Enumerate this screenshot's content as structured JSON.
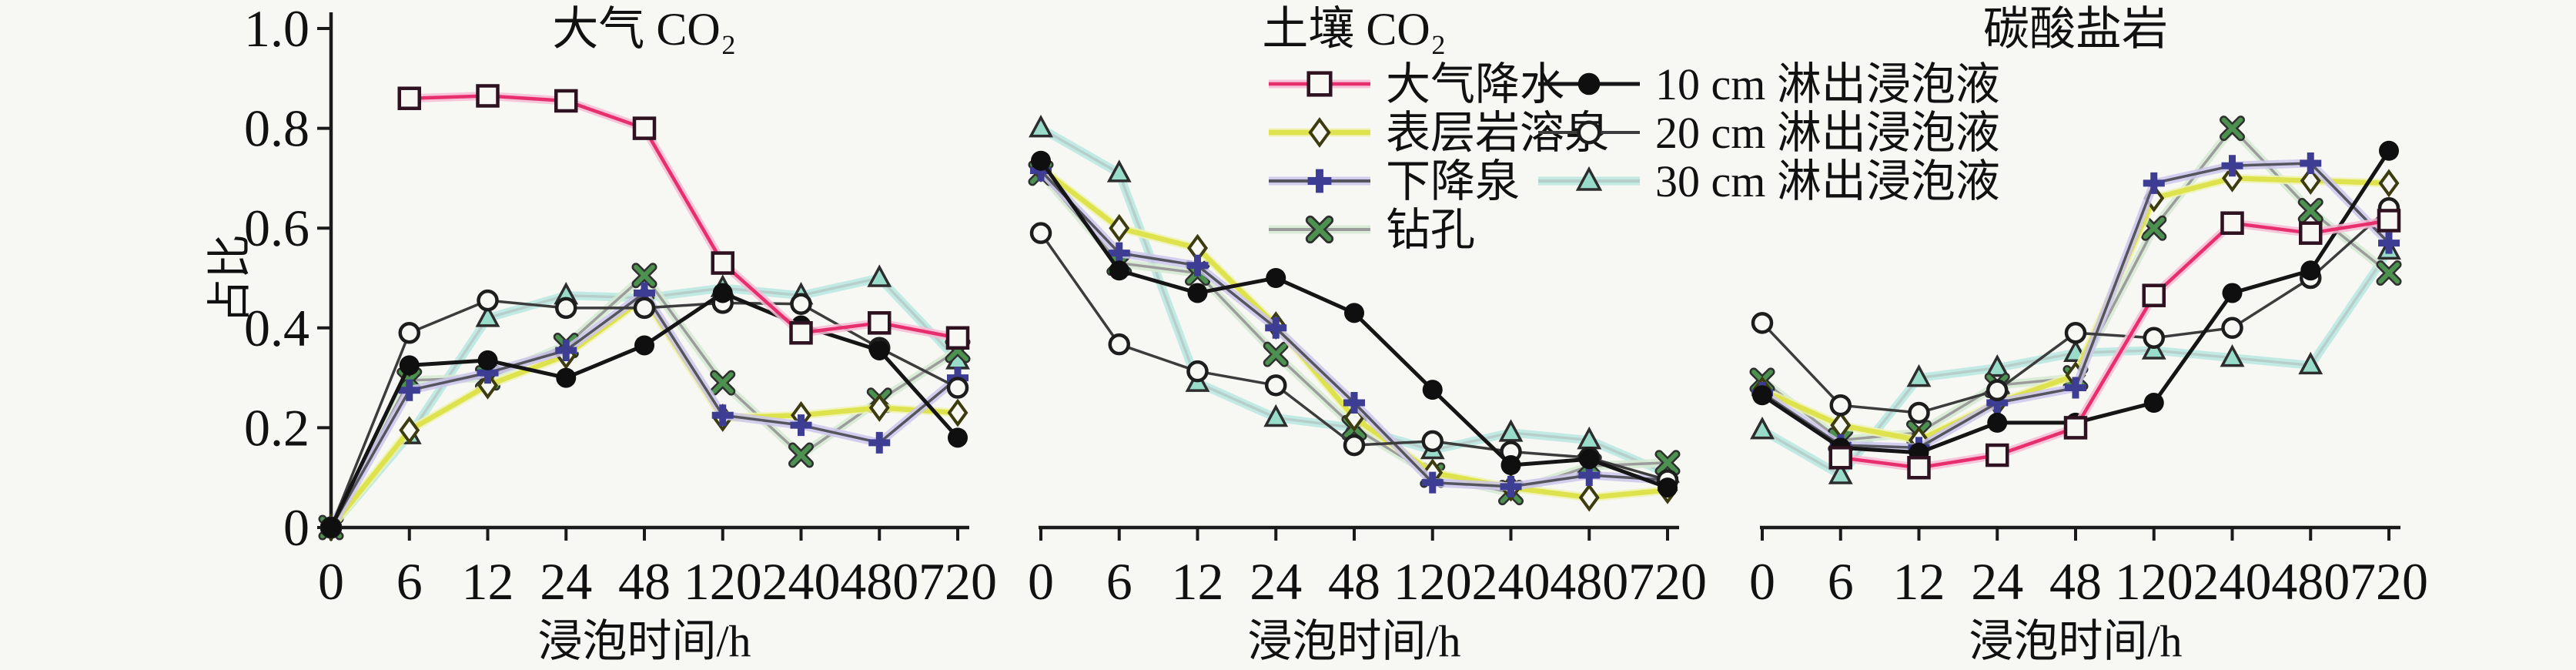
{
  "figure": {
    "background": "#f7f7f4",
    "axis_color": "#1a1a1a",
    "y_axis": {
      "label": "占比",
      "ticks": [
        0,
        0.2,
        0.4,
        0.6,
        0.8,
        1.0
      ],
      "tick_labels": [
        "0",
        "0.2",
        "0.4",
        "0.6",
        "0.8",
        "1.0"
      ],
      "range": [
        0,
        1.0
      ]
    },
    "x_axis": {
      "label": "浸泡时间/h",
      "tick_labels": [
        "0",
        "6",
        "12",
        "24",
        "48",
        "120",
        "240",
        "480",
        "720"
      ]
    }
  },
  "series_styles": {
    "precipitation": {
      "label": "大气降水",
      "marker": "square-open",
      "line_color": "#e82f6e",
      "marker_color": "#2e1220",
      "glow": "#f6bcd4"
    },
    "epikarst_spring": {
      "label": "表层岩溶泉",
      "marker": "diamond-open",
      "line_color": "#dde24d",
      "marker_color": "#3c3c10",
      "glow": "#eff3ae"
    },
    "descending_spring": {
      "label": "下降泉",
      "marker": "plus",
      "line_color": "#55555f",
      "marker_color": "#3d3d94",
      "glow": "#ccc6ec"
    },
    "borehole": {
      "label": "钻孔",
      "marker": "x",
      "line_color": "#9c9c9c",
      "marker_color": "#4c9150",
      "glow": "#d5ead2"
    },
    "leach10": {
      "label": "10 cm 淋出浸泡液",
      "marker": "circle-filled",
      "line_color": "#151515",
      "marker_color": "#0f0f0f",
      "glow": "none"
    },
    "leach20": {
      "label": "20 cm 淋出浸泡液",
      "marker": "circle-open",
      "line_color": "#3c3c3c",
      "marker_color": "#1d1d1d",
      "glow": "none"
    },
    "leach30": {
      "label": "30 cm 淋出浸泡液",
      "marker": "triangle",
      "line_color": "#b7cfca",
      "marker_color": "#2d2d2d",
      "marker_fill": "#99dcca",
      "glow": "#b9e8e0"
    }
  },
  "legend": {
    "columns": [
      [
        "precipitation",
        "epikarst_spring",
        "descending_spring",
        "borehole"
      ],
      [
        "leach10",
        "leach20",
        "leach30"
      ]
    ]
  },
  "chart_data": [
    {
      "type": "line",
      "title": "大气 CO₂",
      "xlabel": "浸泡时间/h",
      "ylabel": "占比",
      "ylim": [
        0,
        1.0
      ],
      "categories": [
        0,
        6,
        12,
        24,
        48,
        120,
        240,
        480,
        720
      ],
      "series": [
        {
          "key": "precipitation",
          "name": "大气降水",
          "values": [
            null,
            0.86,
            0.865,
            0.855,
            0.8,
            0.53,
            0.39,
            0.41,
            0.38
          ]
        },
        {
          "key": "epikarst_spring",
          "name": "表层岩溶泉",
          "values": [
            0,
            0.195,
            0.285,
            0.345,
            0.46,
            0.22,
            0.225,
            0.24,
            0.23
          ]
        },
        {
          "key": "descending_spring",
          "name": "下降泉",
          "values": [
            0,
            0.275,
            0.31,
            0.355,
            0.47,
            0.225,
            0.205,
            0.17,
            0.3
          ]
        },
        {
          "key": "borehole",
          "name": "钻孔",
          "values": [
            0,
            0.295,
            0.3,
            0.365,
            0.505,
            0.29,
            0.145,
            0.255,
            0.355
          ]
        },
        {
          "key": "leach10",
          "name": "10 cm 淋出浸泡液",
          "values": [
            0,
            0.325,
            0.335,
            0.3,
            0.365,
            0.47,
            0.405,
            0.355,
            0.18
          ]
        },
        {
          "key": "leach20",
          "name": "20 cm 淋出浸泡液",
          "values": [
            0,
            0.39,
            0.455,
            0.44,
            0.44,
            0.45,
            0.448,
            0.36,
            0.28
          ]
        },
        {
          "key": "leach30",
          "name": "30 cm 淋出浸泡液",
          "values": [
            0,
            0.185,
            0.42,
            0.465,
            0.46,
            0.48,
            0.465,
            0.5,
            0.335
          ]
        }
      ]
    },
    {
      "type": "line",
      "title": "土壤 CO₂",
      "xlabel": "浸泡时间/h",
      "ylabel": "占比",
      "ylim": [
        0,
        1.0
      ],
      "categories": [
        0,
        6,
        12,
        24,
        48,
        120,
        240,
        480,
        720
      ],
      "series": [
        {
          "key": "epikarst_spring",
          "name": "表层岩溶泉",
          "values": [
            0.72,
            0.6,
            0.56,
            0.405,
            0.22,
            0.11,
            0.08,
            0.06,
            0.075
          ]
        },
        {
          "key": "descending_spring",
          "name": "下降泉",
          "values": [
            0.715,
            0.55,
            0.525,
            0.4,
            0.25,
            0.09,
            0.082,
            0.105,
            0.095
          ]
        },
        {
          "key": "borehole",
          "name": "钻孔",
          "values": [
            0.71,
            0.53,
            0.51,
            0.347,
            0.2,
            0.105,
            0.07,
            0.123,
            0.13
          ]
        },
        {
          "key": "leach10",
          "name": "10 cm 淋出浸泡液",
          "values": [
            0.735,
            0.515,
            0.47,
            0.5,
            0.43,
            0.276,
            0.125,
            0.137,
            0.08
          ]
        },
        {
          "key": "leach20",
          "name": "20 cm 淋出浸泡液",
          "values": [
            0.59,
            0.367,
            0.313,
            0.285,
            0.165,
            0.173,
            0.152,
            0.14,
            0.095
          ]
        },
        {
          "key": "leach30",
          "name": "30 cm 淋出浸泡液",
          "values": [
            0.8,
            0.71,
            0.29,
            0.22,
            0.2,
            0.155,
            0.19,
            0.175,
            0.108
          ]
        }
      ]
    },
    {
      "type": "line",
      "title": "碳酸盐岩",
      "xlabel": "浸泡时间/h",
      "ylabel": "占比",
      "ylim": [
        0,
        1.0
      ],
      "categories": [
        0,
        6,
        12,
        24,
        48,
        120,
        240,
        480,
        720
      ],
      "series": [
        {
          "key": "precipitation",
          "name": "大气降水",
          "values": [
            null,
            0.14,
            0.12,
            0.145,
            0.2,
            0.465,
            0.61,
            0.59,
            0.615
          ]
        },
        {
          "key": "epikarst_spring",
          "name": "表层岩溶泉",
          "values": [
            0.275,
            0.205,
            0.175,
            0.25,
            0.305,
            0.66,
            0.7,
            0.695,
            0.69
          ]
        },
        {
          "key": "descending_spring",
          "name": "下降泉",
          "values": [
            0.27,
            0.165,
            0.16,
            0.25,
            0.28,
            0.69,
            0.725,
            0.73,
            0.57
          ]
        },
        {
          "key": "borehole",
          "name": "钻孔",
          "values": [
            0.295,
            0.175,
            0.19,
            0.285,
            0.3,
            0.6,
            0.8,
            0.635,
            0.51
          ]
        },
        {
          "key": "leach10",
          "name": "10 cm 淋出浸泡液",
          "values": [
            0.265,
            0.16,
            0.15,
            0.21,
            0.21,
            0.25,
            0.47,
            0.515,
            0.755
          ]
        },
        {
          "key": "leach20",
          "name": "20 cm 淋出浸泡液",
          "values": [
            0.41,
            0.245,
            0.23,
            0.275,
            0.39,
            0.38,
            0.4,
            0.5,
            0.64
          ]
        },
        {
          "key": "leach30",
          "name": "30 cm 淋出浸泡液",
          "values": [
            0.195,
            0.105,
            0.3,
            0.32,
            0.35,
            0.355,
            0.34,
            0.325,
            0.555
          ]
        }
      ]
    }
  ]
}
